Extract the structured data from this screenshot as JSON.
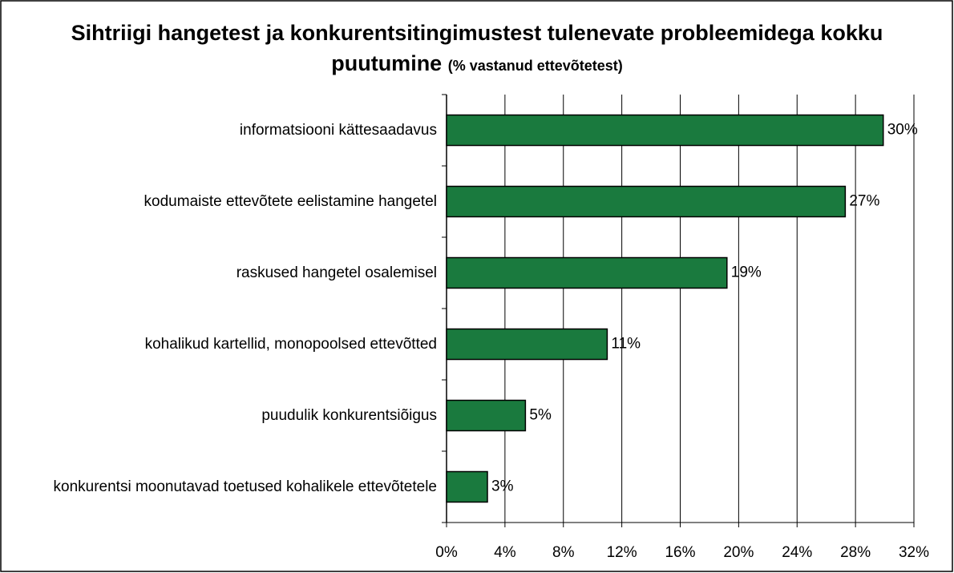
{
  "chart_data": {
    "type": "barh",
    "title": "Sihtriigi hangetest ja konkurentsitingimustest tulenevate probleemidega kokku puutumine",
    "subtitle": "(% vastanud ettevõtetest)",
    "categories": [
      "informatsiooni kättesaadavus",
      "kodumaiste ettevõtete eelistamine hangetel",
      "raskused hangetel osalemisel",
      "kohalikud kartellid, monopoolsed ettevõtted",
      "puudulik konkurentsiõigus",
      "konkurentsi moonutavad toetused kohalikele ettevõtetele"
    ],
    "values": [
      29.9,
      27.3,
      19.2,
      11.0,
      5.4,
      2.8
    ],
    "value_labels": [
      "30%",
      "27%",
      "19%",
      "11%",
      "5%",
      "3%"
    ],
    "color": "#1a7a3e",
    "xlim": [
      0,
      32
    ],
    "xticks": [
      {
        "value": 0,
        "label": "0%"
      },
      {
        "value": 4,
        "label": "4%"
      },
      {
        "value": 8,
        "label": "8%"
      },
      {
        "value": 12,
        "label": "12%"
      },
      {
        "value": 16,
        "label": "16%"
      },
      {
        "value": 20,
        "label": "20%"
      },
      {
        "value": 24,
        "label": "24%"
      },
      {
        "value": 28,
        "label": "28%"
      },
      {
        "value": 32,
        "label": "32%"
      }
    ],
    "grid": true
  }
}
